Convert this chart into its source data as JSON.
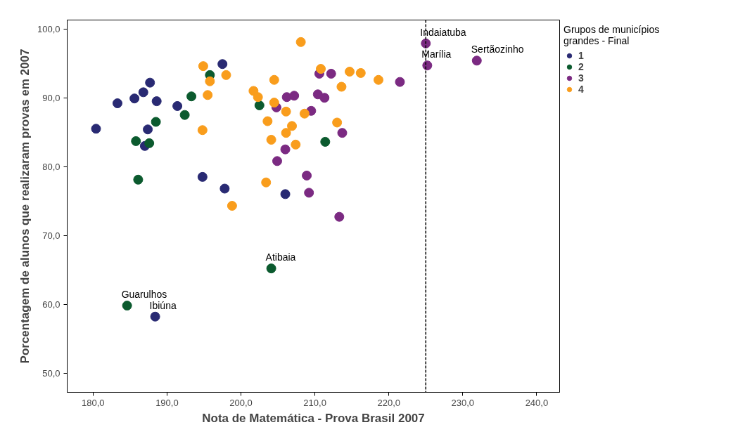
{
  "chart_data": {
    "type": "scatter",
    "xlabel": "Nota de Matemática - Prova Brasil 2007",
    "ylabel": "Porcentagem de alunos que realizaram provas em 2007",
    "legend_title": "Grupos de municípios grandes - Final",
    "legend": "top right",
    "grid": false,
    "marker": "circle",
    "xlim": [
      176.5,
      243.1
    ],
    "ylim": [
      47.2,
      101.3
    ],
    "xticks": [
      {
        "value": 180,
        "label": "180,0"
      },
      {
        "value": 190,
        "label": "190,0"
      },
      {
        "value": 200,
        "label": "200,0"
      },
      {
        "value": 210,
        "label": "210,0"
      },
      {
        "value": 220,
        "label": "220,0"
      },
      {
        "value": 230,
        "label": "230,0"
      },
      {
        "value": 240,
        "label": "240,0"
      }
    ],
    "yticks": [
      {
        "value": 50,
        "label": "50,0"
      },
      {
        "value": 60,
        "label": "60,0"
      },
      {
        "value": 70,
        "label": "70,0"
      },
      {
        "value": 80,
        "label": "80,0"
      },
      {
        "value": 90,
        "label": "90,0"
      },
      {
        "value": 100,
        "label": "100,0"
      }
    ],
    "series": [
      {
        "name": "1",
        "color": "#292a73",
        "x": [
          180.4,
          183.3,
          185.6,
          186.8,
          187.7,
          188.6,
          187.4,
          187.0,
          191.4,
          197.5,
          194.8,
          197.8,
          206.0,
          188.4
        ],
        "values": [
          85.5,
          89.2,
          89.9,
          90.8,
          92.2,
          89.5,
          85.4,
          83.0,
          88.8,
          94.9,
          78.5,
          76.8,
          76.0,
          58.2
        ]
      },
      {
        "name": "2",
        "color": "#0b5a2e",
        "x": [
          195.8,
          193.3,
          192.4,
          188.5,
          185.8,
          187.6,
          186.1,
          202.5,
          211.4,
          204.1,
          184.6
        ],
        "values": [
          93.3,
          90.2,
          87.5,
          86.5,
          83.7,
          83.4,
          78.1,
          88.9,
          83.6,
          65.2,
          59.8
        ]
      },
      {
        "name": "3",
        "color": "#7b2a82",
        "x": [
          225.0,
          225.2,
          231.9,
          221.5,
          210.6,
          212.2,
          206.2,
          207.2,
          210.4,
          211.3,
          204.8,
          209.5,
          213.7,
          206.0,
          204.9,
          208.9,
          209.2,
          213.3
        ],
        "values": [
          97.9,
          94.7,
          95.4,
          92.3,
          93.5,
          93.5,
          90.1,
          90.3,
          90.5,
          90.0,
          88.6,
          88.1,
          84.9,
          82.5,
          80.8,
          78.7,
          76.2,
          72.7
        ]
      },
      {
        "name": "4",
        "color": "#f99d1c",
        "x": [
          208.1,
          210.8,
          214.7,
          216.2,
          218.6,
          204.5,
          213.6,
          201.7,
          202.3,
          204.5,
          206.1,
          208.6,
          203.6,
          213.0,
          206.9,
          206.1,
          204.1,
          207.4,
          203.4,
          198.8,
          194.9,
          198.0,
          195.8,
          195.5,
          194.8
        ],
        "values": [
          98.1,
          94.2,
          93.8,
          93.6,
          92.6,
          92.6,
          91.6,
          91.0,
          90.1,
          89.3,
          88.0,
          87.7,
          86.6,
          86.4,
          85.9,
          84.9,
          83.9,
          83.2,
          77.7,
          74.3,
          94.6,
          93.3,
          92.4,
          90.4,
          85.3
        ]
      }
    ],
    "ref_lines": [
      {
        "axis": "x",
        "value": 225,
        "color": "#000000",
        "line_style": "dashed"
      }
    ],
    "annotations": [
      {
        "text": "Indaiatuba",
        "x": 225.0,
        "y": 97.9
      },
      {
        "text": "Marília",
        "x": 225.2,
        "y": 94.7
      },
      {
        "text": "Sertãozinho",
        "x": 231.9,
        "y": 95.4
      },
      {
        "text": "Atibaia",
        "x": 204.1,
        "y": 65.2
      },
      {
        "text": "Guarulhos",
        "x": 184.6,
        "y": 59.8
      },
      {
        "text": "Ibiúna",
        "x": 188.4,
        "y": 58.2
      }
    ]
  }
}
